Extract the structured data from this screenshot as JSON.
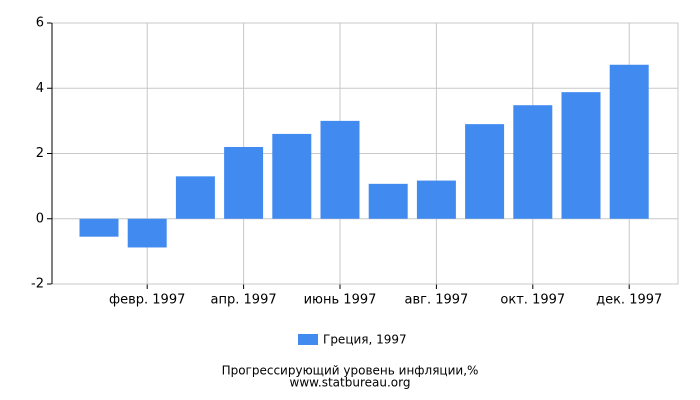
{
  "chart_data": {
    "type": "bar",
    "title": "Прогрессирующий уровень инфляции,%",
    "subtitle": "www.statbureau.org",
    "categories": [
      null,
      "февр. 1997",
      null,
      "апр. 1997",
      null,
      "июнь 1997",
      null,
      "авг. 1997",
      null,
      "окт. 1997",
      null,
      "дек. 1997"
    ],
    "series": [
      {
        "name": "Греция, 1997",
        "color": "#418af0",
        "values": [
          -0.55,
          -0.88,
          1.3,
          2.2,
          2.6,
          3.0,
          1.07,
          1.17,
          2.9,
          3.48,
          3.88,
          4.72
        ]
      }
    ],
    "ylim": [
      -2,
      6
    ],
    "yticks": [
      -2,
      0,
      2,
      4,
      6
    ],
    "grid": true
  }
}
